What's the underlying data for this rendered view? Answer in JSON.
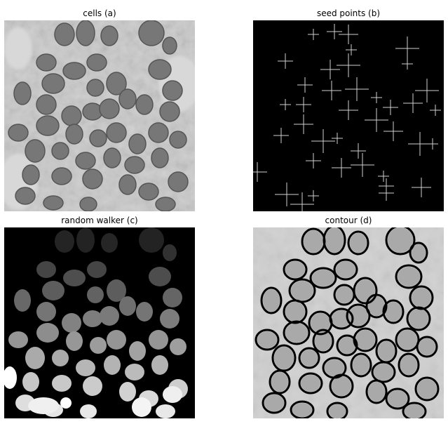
{
  "panels": [
    {
      "title": "cells (a)",
      "type": "microscopy-grayscale"
    },
    {
      "title": "seed points (b)",
      "type": "markers-on-black"
    },
    {
      "title": "random walker (c)",
      "type": "segmentation-labels"
    },
    {
      "title": "contour (d)",
      "type": "contour-overlay"
    }
  ],
  "colors": {
    "background": "#ffffff",
    "black": "#000000",
    "marker": "#cfcfcf",
    "contour": "#000000"
  }
}
